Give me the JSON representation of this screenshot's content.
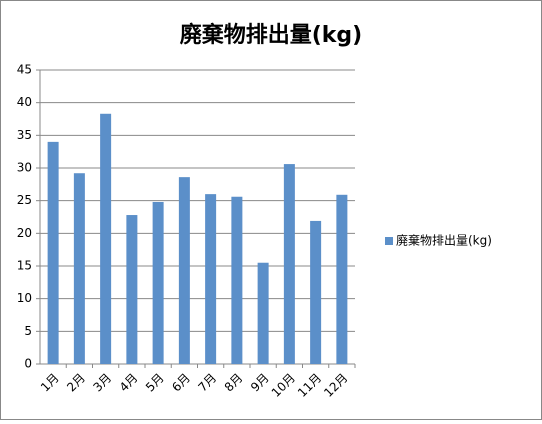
{
  "chart_data": {
    "type": "bar",
    "title": "廃棄物排出量(kg)",
    "categories": [
      "1月",
      "2月",
      "3月",
      "4月",
      "5月",
      "6月",
      "7月",
      "8月",
      "9月",
      "10月",
      "11月",
      "12月"
    ],
    "series": [
      {
        "name": "廃棄物排出量(kg)",
        "color": "#5b8fc9",
        "values": [
          34.0,
          29.2,
          38.3,
          22.8,
          24.8,
          28.6,
          26.0,
          25.6,
          15.5,
          30.6,
          21.9,
          25.9
        ]
      }
    ],
    "ylim": [
      0,
      45
    ],
    "yticks": [
      0,
      5,
      10,
      15,
      20,
      25,
      30,
      35,
      40,
      45
    ],
    "grid": true,
    "legend": "right"
  }
}
